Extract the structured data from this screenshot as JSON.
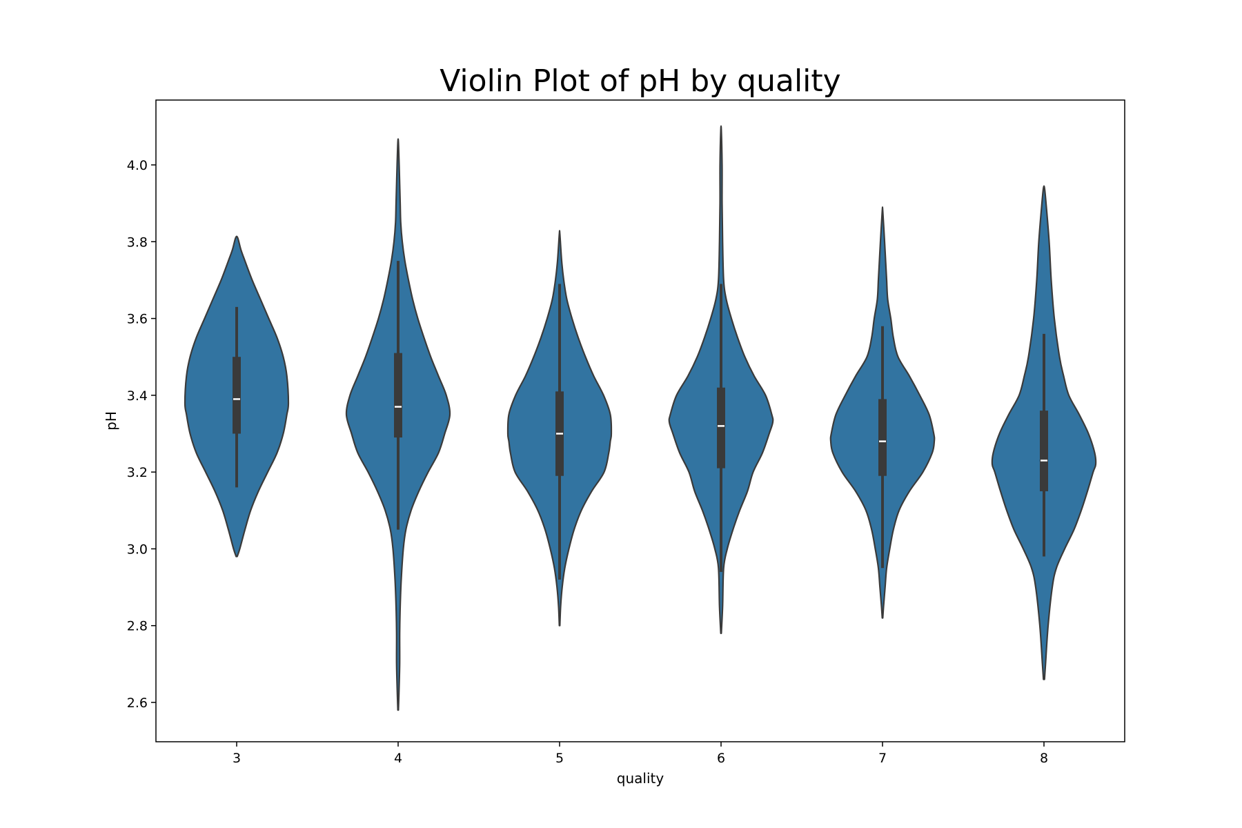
{
  "chart_data": {
    "type": "violin",
    "title": "Violin Plot of pH by quality",
    "xlabel": "quality",
    "ylabel": "pH",
    "ylim": [
      2.5,
      4.17
    ],
    "yticks": [
      "2.6",
      "2.8",
      "3.0",
      "3.2",
      "3.4",
      "3.6",
      "3.8",
      "4.0"
    ],
    "categories": [
      "3",
      "4",
      "5",
      "6",
      "7",
      "8"
    ],
    "grid": false,
    "colors": {
      "violin_fill": "#3274a1",
      "violin_edge": "#3a3a3a",
      "box": "#3a3a3a",
      "median": "#ffffff"
    },
    "series": [
      {
        "category": "3",
        "density": [
          [
            2.98,
            0.01
          ],
          [
            3.0,
            0.06
          ],
          [
            3.05,
            0.16
          ],
          [
            3.1,
            0.27
          ],
          [
            3.15,
            0.42
          ],
          [
            3.2,
            0.6
          ],
          [
            3.25,
            0.78
          ],
          [
            3.3,
            0.9
          ],
          [
            3.35,
            0.97
          ],
          [
            3.38,
            1.0
          ],
          [
            3.45,
            0.97
          ],
          [
            3.5,
            0.9
          ],
          [
            3.55,
            0.78
          ],
          [
            3.6,
            0.62
          ],
          [
            3.65,
            0.46
          ],
          [
            3.7,
            0.3
          ],
          [
            3.75,
            0.16
          ],
          [
            3.78,
            0.08
          ],
          [
            3.81,
            0.02
          ]
        ],
        "whisker_low": 3.16,
        "q1": 3.3,
        "median": 3.39,
        "q3": 3.5,
        "whisker_high": 3.63
      },
      {
        "category": "4",
        "density": [
          [
            2.58,
            0.005
          ],
          [
            2.62,
            0.015
          ],
          [
            2.7,
            0.03
          ],
          [
            2.78,
            0.03
          ],
          [
            2.85,
            0.04
          ],
          [
            2.92,
            0.06
          ],
          [
            3.0,
            0.1
          ],
          [
            3.05,
            0.15
          ],
          [
            3.1,
            0.25
          ],
          [
            3.15,
            0.4
          ],
          [
            3.2,
            0.58
          ],
          [
            3.25,
            0.78
          ],
          [
            3.3,
            0.9
          ],
          [
            3.35,
            1.0
          ],
          [
            3.4,
            0.93
          ],
          [
            3.45,
            0.78
          ],
          [
            3.5,
            0.63
          ],
          [
            3.55,
            0.5
          ],
          [
            3.6,
            0.38
          ],
          [
            3.65,
            0.28
          ],
          [
            3.7,
            0.2
          ],
          [
            3.75,
            0.13
          ],
          [
            3.8,
            0.08
          ],
          [
            3.85,
            0.05
          ],
          [
            3.9,
            0.04
          ],
          [
            3.95,
            0.03
          ],
          [
            4.0,
            0.02
          ],
          [
            4.06,
            0.005
          ]
        ],
        "whisker_low": 3.05,
        "q1": 3.29,
        "median": 3.37,
        "q3": 3.51,
        "whisker_high": 3.75
      },
      {
        "category": "5",
        "density": [
          [
            2.8,
            0.005
          ],
          [
            2.85,
            0.02
          ],
          [
            2.9,
            0.05
          ],
          [
            2.95,
            0.1
          ],
          [
            3.0,
            0.18
          ],
          [
            3.05,
            0.28
          ],
          [
            3.1,
            0.42
          ],
          [
            3.15,
            0.62
          ],
          [
            3.2,
            0.86
          ],
          [
            3.25,
            0.95
          ],
          [
            3.28,
            0.98
          ],
          [
            3.3,
            1.0
          ],
          [
            3.35,
            0.98
          ],
          [
            3.4,
            0.85
          ],
          [
            3.45,
            0.66
          ],
          [
            3.5,
            0.5
          ],
          [
            3.55,
            0.36
          ],
          [
            3.6,
            0.24
          ],
          [
            3.65,
            0.14
          ],
          [
            3.7,
            0.08
          ],
          [
            3.75,
            0.04
          ],
          [
            3.82,
            0.005
          ]
        ],
        "whisker_low": 2.92,
        "q1": 3.19,
        "median": 3.3,
        "q3": 3.41,
        "whisker_high": 3.69
      },
      {
        "category": "6",
        "density": [
          [
            2.78,
            0.005
          ],
          [
            2.85,
            0.03
          ],
          [
            2.95,
            0.05
          ],
          [
            3.0,
            0.12
          ],
          [
            3.05,
            0.23
          ],
          [
            3.1,
            0.36
          ],
          [
            3.15,
            0.51
          ],
          [
            3.2,
            0.62
          ],
          [
            3.25,
            0.8
          ],
          [
            3.3,
            0.93
          ],
          [
            3.33,
            1.0
          ],
          [
            3.35,
            0.98
          ],
          [
            3.4,
            0.86
          ],
          [
            3.45,
            0.64
          ],
          [
            3.5,
            0.46
          ],
          [
            3.55,
            0.32
          ],
          [
            3.6,
            0.2
          ],
          [
            3.65,
            0.1
          ],
          [
            3.7,
            0.05
          ],
          [
            3.8,
            0.03
          ],
          [
            3.9,
            0.02
          ],
          [
            4.0,
            0.02
          ],
          [
            4.09,
            0.005
          ]
        ],
        "whisker_low": 2.94,
        "q1": 3.21,
        "median": 3.32,
        "q3": 3.42,
        "whisker_high": 3.69
      },
      {
        "category": "7",
        "density": [
          [
            2.82,
            0.005
          ],
          [
            2.85,
            0.02
          ],
          [
            2.9,
            0.05
          ],
          [
            2.95,
            0.08
          ],
          [
            3.0,
            0.14
          ],
          [
            3.05,
            0.21
          ],
          [
            3.1,
            0.32
          ],
          [
            3.15,
            0.52
          ],
          [
            3.2,
            0.78
          ],
          [
            3.25,
            0.96
          ],
          [
            3.28,
            1.0
          ],
          [
            3.3,
            0.99
          ],
          [
            3.35,
            0.9
          ],
          [
            3.4,
            0.72
          ],
          [
            3.45,
            0.52
          ],
          [
            3.5,
            0.3
          ],
          [
            3.55,
            0.21
          ],
          [
            3.6,
            0.16
          ],
          [
            3.65,
            0.1
          ],
          [
            3.7,
            0.08
          ],
          [
            3.75,
            0.06
          ],
          [
            3.8,
            0.04
          ],
          [
            3.88,
            0.005
          ]
        ],
        "whisker_low": 2.95,
        "q1": 3.19,
        "median": 3.28,
        "q3": 3.39,
        "whisker_high": 3.58
      },
      {
        "category": "8",
        "density": [
          [
            2.66,
            0.01
          ],
          [
            2.7,
            0.03
          ],
          [
            2.8,
            0.08
          ],
          [
            2.9,
            0.16
          ],
          [
            2.95,
            0.24
          ],
          [
            3.0,
            0.4
          ],
          [
            3.05,
            0.58
          ],
          [
            3.1,
            0.72
          ],
          [
            3.15,
            0.84
          ],
          [
            3.2,
            0.95
          ],
          [
            3.22,
            1.0
          ],
          [
            3.25,
            0.98
          ],
          [
            3.3,
            0.86
          ],
          [
            3.35,
            0.68
          ],
          [
            3.4,
            0.48
          ],
          [
            3.45,
            0.38
          ],
          [
            3.5,
            0.3
          ],
          [
            3.6,
            0.2
          ],
          [
            3.7,
            0.14
          ],
          [
            3.8,
            0.1
          ],
          [
            3.9,
            0.04
          ],
          [
            3.94,
            0.01
          ]
        ],
        "whisker_low": 2.98,
        "q1": 3.15,
        "median": 3.23,
        "q3": 3.36,
        "whisker_high": 3.56
      }
    ]
  }
}
